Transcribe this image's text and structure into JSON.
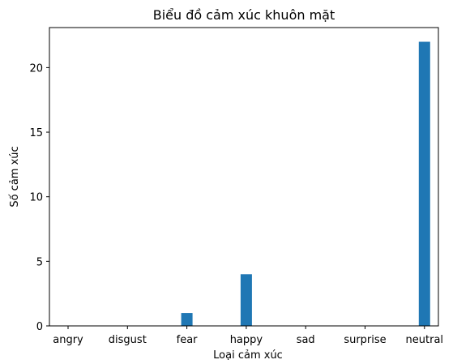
{
  "chart_data": {
    "type": "bar",
    "title": "Biểu đồ cảm xúc khuôn mặt",
    "xlabel": "Loại cảm xúc",
    "ylabel": "Số cảm xúc",
    "categories": [
      "angry",
      "disgust",
      "fear",
      "happy",
      "sad",
      "surprise",
      "neutral"
    ],
    "values": [
      0,
      0,
      1,
      4,
      0,
      0,
      22
    ],
    "ylim": [
      0,
      23.1
    ],
    "yticks": [
      0,
      5,
      10,
      15,
      20
    ],
    "bar_color": "#1f77b4",
    "grid": false
  }
}
